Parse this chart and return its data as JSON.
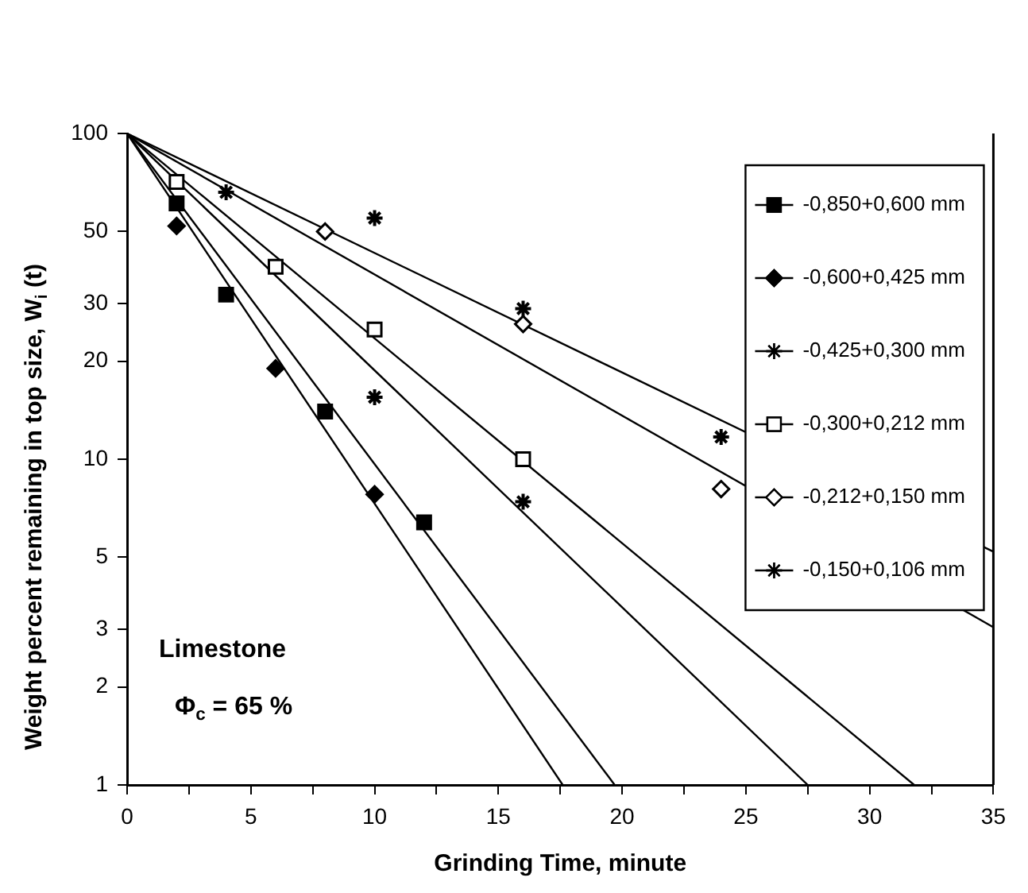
{
  "chart_data": {
    "type": "scatter",
    "xlabel": "Grinding Time, minute",
    "ylabel": "Weight percent remaining in top size, W$_{i}$ (t)",
    "xlim": [
      0,
      35
    ],
    "xticks": [
      0,
      {
        "value": 2.5,
        "label": null
      },
      5,
      {
        "value": 7.5,
        "label": null
      },
      10,
      {
        "value": 12.5,
        "label": null
      },
      15,
      {
        "value": 17.5,
        "label": null
      },
      20,
      {
        "value": 22.5,
        "label": null
      },
      25,
      {
        "value": 27.5,
        "label": null
      },
      30,
      {
        "value": 32.5,
        "label": null
      },
      35
    ],
    "ylim": [
      1,
      100
    ],
    "yticks": [
      1,
      2,
      3,
      5,
      10,
      20,
      30,
      50,
      100
    ],
    "log": "y",
    "grid": false,
    "legend": "top right",
    "annotations": [
      "Limestone",
      "Φ$_{c}$ = 65 %"
    ],
    "series": [
      {
        "name": "-0,850+0,600 mm",
        "color": "#000000",
        "marker": "square",
        "x": [
          2,
          4,
          8,
          12
        ],
        "values": [
          61,
          32,
          14,
          6.4
        ]
      },
      {
        "name": "-0,600+0,425 mm",
        "color": "#000000",
        "marker": "diamond",
        "x": [
          2,
          6,
          10
        ],
        "values": [
          52,
          19,
          7.8
        ]
      },
      {
        "name": "-0,425+0,300 mm",
        "color": "#000000",
        "marker": "cross",
        "x": [
          10,
          16
        ],
        "values": [
          15.5,
          7.4
        ]
      },
      {
        "name": "-0,300+0,212 mm",
        "color": "#ffffff",
        "marker": "square",
        "x": [
          2,
          6,
          10,
          16
        ],
        "values": [
          71,
          39,
          25,
          10
        ]
      },
      {
        "name": "-0,212+0,150 mm",
        "color": "#ffffff",
        "marker": "diamond",
        "x": [
          8,
          16,
          24
        ],
        "values": [
          50,
          26,
          8.1
        ]
      },
      {
        "name": "-0,150+0,106 mm",
        "color": "#000000",
        "marker": "cross",
        "x": [
          4,
          10,
          16,
          24
        ],
        "values": [
          66,
          55,
          29,
          11.7
        ]
      },
      {
        "type": "line",
        "color": "#000000",
        "marker": "none",
        "x": [
          0,
          19.7
        ],
        "values": [
          100,
          1
        ]
      },
      {
        "type": "line",
        "color": "#000000",
        "marker": "none",
        "x": [
          0,
          17.6
        ],
        "values": [
          100,
          1
        ]
      },
      {
        "type": "line",
        "color": "#000000",
        "marker": "none",
        "x": [
          0,
          27.5
        ],
        "values": [
          100,
          1
        ]
      },
      {
        "type": "line",
        "color": "#000000",
        "marker": "none",
        "x": [
          0,
          31.8
        ],
        "values": [
          100,
          1
        ]
      },
      {
        "type": "line",
        "color": "#000000",
        "marker": "none",
        "x": [
          0,
          35
        ],
        "values": [
          100,
          3.05
        ]
      },
      {
        "type": "line",
        "color": "#000000",
        "marker": "none",
        "x": [
          0,
          35
        ],
        "values": [
          100,
          5.2
        ]
      }
    ]
  }
}
